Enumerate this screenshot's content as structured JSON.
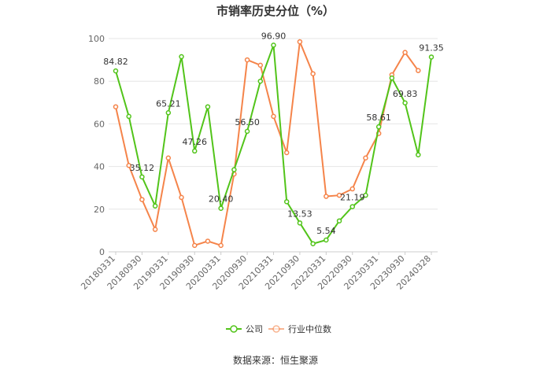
{
  "chart_data": {
    "type": "line",
    "title": "市销率历史分位（%）",
    "source": "数据来源：恒生聚源",
    "ylim": [
      0,
      100
    ],
    "yticks": [
      0,
      20,
      40,
      60,
      80,
      100
    ],
    "grid": true,
    "legend_position": "bottom-center",
    "x": [
      "20180331",
      "20180630",
      "20180930",
      "20181231",
      "20190331",
      "20190630",
      "20190930",
      "20191231",
      "20200331",
      "20200630",
      "20200930",
      "20201231",
      "20210331",
      "20210630",
      "20210930",
      "20211231",
      "20220331",
      "20220630",
      "20220930",
      "20221231",
      "20230331",
      "20230630",
      "20230930",
      "20231231",
      "20240328"
    ],
    "xtick_labels": [
      "20180331",
      "20180930",
      "20190331",
      "20190930",
      "20200331",
      "20200930",
      "20210331",
      "20210930",
      "20220331",
      "20220930",
      "20230331",
      "20230930",
      "20240328"
    ],
    "series": [
      {
        "name": "公司",
        "color": "#52c41a",
        "values": [
          84.82,
          63.5,
          35.12,
          21.5,
          65.21,
          91.5,
          47.26,
          68.0,
          20.4,
          38.5,
          56.5,
          80.0,
          96.9,
          23.5,
          13.53,
          3.8,
          5.54,
          14.5,
          21.19,
          26.5,
          58.61,
          81.5,
          69.83,
          45.5,
          91.35
        ],
        "data_labels": [
          {
            "index": 0,
            "text": "84.82"
          },
          {
            "index": 2,
            "text": "35.12"
          },
          {
            "index": 4,
            "text": "65.21"
          },
          {
            "index": 6,
            "text": "47.26"
          },
          {
            "index": 8,
            "text": "20.40"
          },
          {
            "index": 10,
            "text": "56.50"
          },
          {
            "index": 12,
            "text": "96.90"
          },
          {
            "index": 14,
            "text": "13.53"
          },
          {
            "index": 16,
            "text": "5.54"
          },
          {
            "index": 18,
            "text": "21.19"
          },
          {
            "index": 20,
            "text": "58.61"
          },
          {
            "index": 22,
            "text": "69.83"
          },
          {
            "index": 24,
            "text": "91.35"
          }
        ]
      },
      {
        "name": "行业中位数",
        "color": "#f5844a",
        "values": [
          68.0,
          40.5,
          24.5,
          10.5,
          44.0,
          25.5,
          3.0,
          5.0,
          3.0,
          36.5,
          90.0,
          87.5,
          63.5,
          46.5,
          98.5,
          83.5,
          26.0,
          26.5,
          29.5,
          44.0,
          55.5,
          83.0,
          93.5,
          85.0,
          null
        ]
      }
    ]
  }
}
